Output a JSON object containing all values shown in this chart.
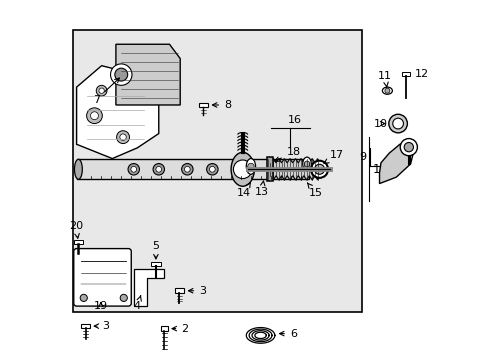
{
  "bg_color": "#ffffff",
  "box_color": "#d8d8d8",
  "line_color": "#000000",
  "part_color": "#888888",
  "dark_color": "#333333",
  "figsize": [
    4.89,
    3.6
  ],
  "dpi": 100
}
